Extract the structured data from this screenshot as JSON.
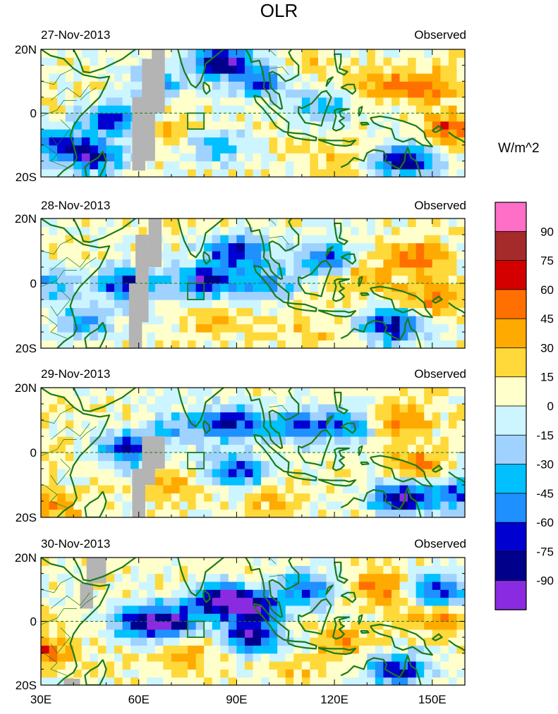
{
  "figure_title": "OLR",
  "units_label": "W/m^2",
  "colorbar": {
    "labels": [
      "90",
      "75",
      "60",
      "45",
      "30",
      "15",
      "0",
      "-15",
      "-30",
      "-45",
      "-60",
      "-75",
      "-90"
    ],
    "colors": [
      "#ff6ec7",
      "#a52a2a",
      "#d40000",
      "#ff7000",
      "#ffaa00",
      "#ffd83a",
      "#ffffcc",
      "#ccf5ff",
      "#a0d2ff",
      "#00c0ff",
      "#1e90ff",
      "#0000d0",
      "#00008b",
      "#8a2be2"
    ]
  },
  "colors": {
    "coast": "#1a7a1a",
    "missing": "#b4b4b4",
    "equator": "#1a7a1a"
  },
  "chart_data": [
    {
      "type": "heatmap",
      "date": "27-Nov-2013",
      "label_right": "Observed",
      "xlim": [
        30,
        160
      ],
      "ylim": [
        -20,
        20
      ],
      "xticks": [
        "30E",
        "60E",
        "90E",
        "120E",
        "150E"
      ],
      "yticks": [
        "20N",
        "0",
        "20S"
      ],
      "anomalies": [
        {
          "lon": 86,
          "lat": 16,
          "value": -95
        },
        {
          "lon": 66,
          "lat": 10,
          "value": -45
        },
        {
          "lon": 52,
          "lat": -2,
          "value": -70
        },
        {
          "lon": 36,
          "lat": -10,
          "value": -75
        },
        {
          "lon": 47,
          "lat": -14,
          "value": -75
        },
        {
          "lon": 84,
          "lat": -10,
          "value": -45
        },
        {
          "lon": 98,
          "lat": 10,
          "value": -60
        },
        {
          "lon": 115,
          "lat": 2,
          "value": -45
        },
        {
          "lon": 142,
          "lat": -15,
          "value": -95
        },
        {
          "lon": 150,
          "lat": 8,
          "value": 45
        },
        {
          "lon": 135,
          "lat": 10,
          "value": 35
        },
        {
          "lon": 110,
          "lat": 15,
          "value": 20
        },
        {
          "lon": 70,
          "lat": -5,
          "value": 25
        },
        {
          "lon": 120,
          "lat": -15,
          "value": 20
        },
        {
          "lon": 156,
          "lat": -5,
          "value": 50
        }
      ],
      "missing_strips": [
        [
          58,
          62,
          -18,
          5
        ],
        [
          61,
          65,
          -15,
          17
        ],
        [
          64,
          68,
          0,
          20
        ]
      ]
    },
    {
      "type": "heatmap",
      "date": "28-Nov-2013",
      "label_right": "Observed",
      "xlim": [
        30,
        160
      ],
      "ylim": [
        -20,
        20
      ],
      "xticks": [
        "30E",
        "60E",
        "90E",
        "120E",
        "150E"
      ],
      "yticks": [
        "20N",
        "0",
        "20S"
      ],
      "anomalies": [
        {
          "lon": 80,
          "lat": 1,
          "value": -90
        },
        {
          "lon": 90,
          "lat": 10,
          "value": -80
        },
        {
          "lon": 57,
          "lat": 0,
          "value": -85
        },
        {
          "lon": 99,
          "lat": 0,
          "value": -50
        },
        {
          "lon": 118,
          "lat": 8,
          "value": -70
        },
        {
          "lon": 138,
          "lat": -13,
          "value": -90
        },
        {
          "lon": 43,
          "lat": -12,
          "value": -60
        },
        {
          "lon": 33,
          "lat": 0,
          "value": -50
        },
        {
          "lon": 145,
          "lat": 8,
          "value": 45
        },
        {
          "lon": 150,
          "lat": -4,
          "value": 45
        },
        {
          "lon": 128,
          "lat": 2,
          "value": 30
        },
        {
          "lon": 82,
          "lat": -12,
          "value": 25
        },
        {
          "lon": 110,
          "lat": -15,
          "value": 20
        }
      ],
      "missing_strips": [
        [
          57,
          61,
          -20,
          0
        ],
        [
          59,
          63,
          -12,
          15
        ],
        [
          63,
          67,
          5,
          20
        ]
      ]
    },
    {
      "type": "heatmap",
      "date": "29-Nov-2013",
      "label_right": "Observed",
      "xlim": [
        30,
        160
      ],
      "ylim": [
        -20,
        20
      ],
      "xticks": [
        "30E",
        "60E",
        "90E",
        "120E",
        "150E"
      ],
      "yticks": [
        "20N",
        "0",
        "20S"
      ],
      "anomalies": [
        {
          "lon": 57,
          "lat": 1,
          "value": -85
        },
        {
          "lon": 88,
          "lat": 9,
          "value": -80
        },
        {
          "lon": 90,
          "lat": -6,
          "value": -80
        },
        {
          "lon": 108,
          "lat": 8,
          "value": -65
        },
        {
          "lon": 124,
          "lat": 9,
          "value": -60
        },
        {
          "lon": 140,
          "lat": -14,
          "value": -90
        },
        {
          "lon": 158,
          "lat": -13,
          "value": -70
        },
        {
          "lon": 72,
          "lat": 8,
          "value": -40
        },
        {
          "lon": 140,
          "lat": 10,
          "value": 45
        },
        {
          "lon": 146,
          "lat": -4,
          "value": 40
        },
        {
          "lon": 100,
          "lat": -14,
          "value": 25
        },
        {
          "lon": 72,
          "lat": -10,
          "value": 25
        },
        {
          "lon": 33,
          "lat": -16,
          "value": 35
        }
      ],
      "missing_strips": [
        [
          58,
          62,
          -20,
          -5
        ],
        [
          61,
          65,
          -10,
          5
        ],
        [
          64,
          68,
          -5,
          5
        ]
      ]
    },
    {
      "type": "heatmap",
      "date": "30-Nov-2013",
      "label_right": "Observed",
      "xlim": [
        30,
        160
      ],
      "ylim": [
        -20,
        20
      ],
      "xticks": [
        "30E",
        "60E",
        "90E",
        "120E",
        "150E"
      ],
      "yticks": [
        "20N",
        "0",
        "20S"
      ],
      "anomalies": [
        {
          "lon": 85,
          "lat": 7,
          "value": -95
        },
        {
          "lon": 95,
          "lat": 4,
          "value": -80
        },
        {
          "lon": 70,
          "lat": 0,
          "value": -85
        },
        {
          "lon": 60,
          "lat": 0,
          "value": -60
        },
        {
          "lon": 95,
          "lat": -5,
          "value": -85
        },
        {
          "lon": 112,
          "lat": 10,
          "value": -70
        },
        {
          "lon": 140,
          "lat": -15,
          "value": -85
        },
        {
          "lon": 152,
          "lat": 10,
          "value": -75
        },
        {
          "lon": 134,
          "lat": 10,
          "value": 45
        },
        {
          "lon": 150,
          "lat": 0,
          "value": 40
        },
        {
          "lon": 122,
          "lat": -6,
          "value": 30
        },
        {
          "lon": 76,
          "lat": -10,
          "value": 30
        },
        {
          "lon": 31,
          "lat": -10,
          "value": 45
        },
        {
          "lon": 108,
          "lat": -16,
          "value": 20
        }
      ],
      "missing_strips": [
        [
          44,
          50,
          12,
          20
        ],
        [
          42,
          46,
          4,
          12
        ],
        [
          37,
          42,
          -20,
          -18
        ]
      ]
    }
  ]
}
